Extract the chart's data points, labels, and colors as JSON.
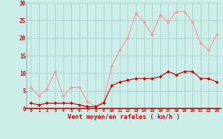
{
  "x": [
    0,
    1,
    2,
    3,
    4,
    5,
    6,
    7,
    8,
    9,
    10,
    11,
    12,
    13,
    14,
    15,
    16,
    17,
    18,
    19,
    20,
    21,
    22,
    23
  ],
  "wind_avg": [
    1.5,
    1.0,
    1.5,
    1.5,
    1.5,
    1.5,
    1.0,
    0.5,
    0.5,
    1.5,
    6.5,
    7.5,
    8.0,
    8.5,
    8.5,
    8.5,
    9.0,
    10.5,
    9.5,
    10.5,
    10.5,
    8.5,
    8.5,
    7.5
  ],
  "wind_gust": [
    6.0,
    3.5,
    5.5,
    10.5,
    3.5,
    6.0,
    6.0,
    2.0,
    0.5,
    2.0,
    12.0,
    16.5,
    20.0,
    27.0,
    24.5,
    21.0,
    26.5,
    24.5,
    27.5,
    27.5,
    24.5,
    18.5,
    16.5,
    21.0
  ],
  "color_avg": "#cc0000",
  "color_gust": "#ff9999",
  "bg_color": "#cceee8",
  "grid_color": "#aacccc",
  "xlabel": "Vent moyen/en rafales ( km/h )",
  "xlabel_color": "#cc0000",
  "tick_color": "#cc0000",
  "ylim": [
    0,
    30
  ],
  "xlim": [
    -0.5,
    23.5
  ],
  "yticks": [
    0,
    5,
    10,
    15,
    20,
    25,
    30
  ],
  "xticks": [
    0,
    1,
    2,
    3,
    4,
    5,
    6,
    7,
    8,
    9,
    10,
    11,
    12,
    13,
    14,
    15,
    16,
    17,
    18,
    19,
    20,
    21,
    22,
    23
  ]
}
